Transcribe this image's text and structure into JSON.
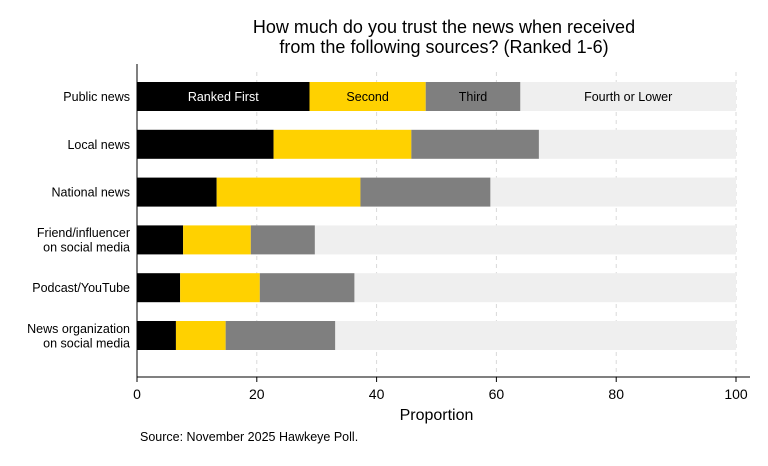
{
  "chart_data": {
    "type": "bar",
    "orientation": "horizontal",
    "stacked": true,
    "title_lines": [
      "How much do you trust the news when received",
      "from the following sources? (Ranked 1-6)"
    ],
    "categories": [
      "Public news",
      "Local news",
      "National news",
      "Friend/influencer on social media",
      "Podcast/YouTube",
      "News organization on social media"
    ],
    "category_label_lines": [
      [
        "Public news"
      ],
      [
        "Local news"
      ],
      [
        "National news"
      ],
      [
        "Friend/influencer",
        "on social media"
      ],
      [
        "Podcast/YouTube"
      ],
      [
        "News organization",
        "on social media"
      ]
    ],
    "series": [
      {
        "name": "Ranked First",
        "color": "#000000",
        "label_color": "#ffffff",
        "values": [
          28.8,
          22.8,
          13.3,
          7.7,
          7.2,
          6.5
        ]
      },
      {
        "name": "Second",
        "color": "#ffd100",
        "label_color": "#000000",
        "values": [
          19.4,
          23.0,
          24.0,
          11.3,
          13.3,
          8.3
        ]
      },
      {
        "name": "Third",
        "color": "#7f7f7f",
        "label_color": "#000000",
        "values": [
          15.8,
          21.3,
          21.7,
          10.7,
          15.8,
          18.3
        ]
      },
      {
        "name": "Fourth or Lower",
        "color": "#efefef",
        "label_color": "#000000",
        "values": [
          36.0,
          32.9,
          41.0,
          70.3,
          63.7,
          66.9
        ]
      }
    ],
    "xlabel": "Proportion",
    "xlim": [
      0,
      100
    ],
    "xticks": [
      0,
      20,
      40,
      60,
      80,
      100
    ],
    "grid": true,
    "legend": "labels inside first bar",
    "note": "Source: November 2025 Hawkeye Poll."
  }
}
